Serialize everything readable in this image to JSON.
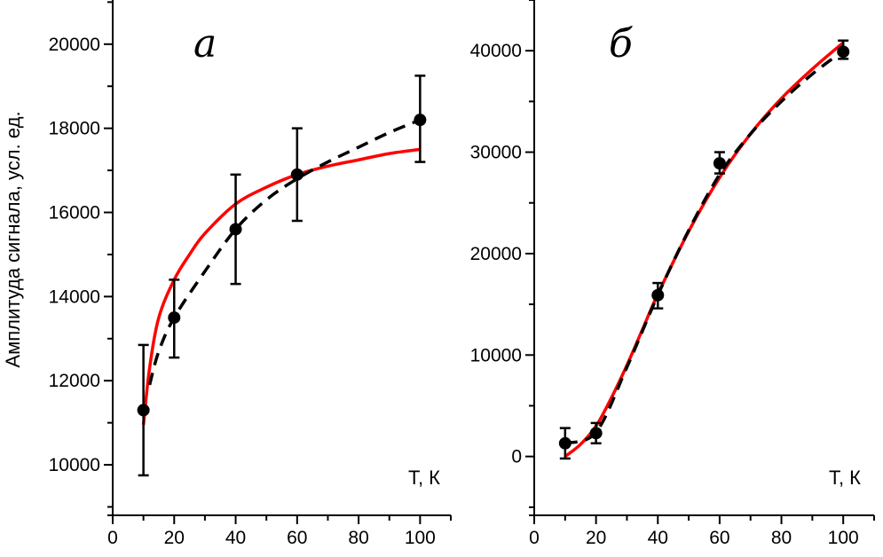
{
  "chart_data": [
    {
      "type": "scatter",
      "panel_label": "а",
      "ylabel": "Амплитуда сигнала, усл. ед.",
      "xlabel": "Т, К",
      "xlim": [
        0,
        110
      ],
      "ylim": [
        8800,
        21050
      ],
      "xticks": [
        0,
        20,
        40,
        60,
        80,
        100
      ],
      "yticks": [
        10000,
        12000,
        14000,
        16000,
        18000,
        20000
      ],
      "grid": false,
      "points": {
        "x": [
          10,
          20,
          40,
          60,
          100
        ],
        "y": [
          11300,
          13500,
          15600,
          16900,
          18200
        ],
        "err_low": [
          9750,
          12550,
          14300,
          15800,
          17200
        ],
        "err_high": [
          12850,
          14400,
          16900,
          18000,
          19250
        ]
      },
      "curves": [
        {
          "style": "solid",
          "color": "#ff0000",
          "x": [
            10,
            12,
            15,
            20,
            25,
            30,
            40,
            50,
            60,
            70,
            80,
            90,
            100
          ],
          "y": [
            10950,
            12300,
            13500,
            14400,
            15000,
            15500,
            16200,
            16600,
            16900,
            17100,
            17250,
            17400,
            17500
          ]
        },
        {
          "style": "dashed",
          "color": "#000000",
          "x": [
            12,
            15,
            20,
            30,
            40,
            50,
            60,
            70,
            80,
            90,
            100
          ],
          "y": [
            11900,
            12700,
            13500,
            14600,
            15600,
            16300,
            16800,
            17200,
            17550,
            17900,
            18200
          ]
        }
      ]
    },
    {
      "type": "scatter",
      "panel_label": "б",
      "xlabel": "Т, К",
      "xlim": [
        0,
        110
      ],
      "ylim": [
        -5800,
        45000
      ],
      "xticks": [
        0,
        20,
        40,
        60,
        80,
        100
      ],
      "yticks": [
        0,
        10000,
        20000,
        30000,
        40000
      ],
      "grid": false,
      "points": {
        "x": [
          10,
          20,
          40,
          60,
          100
        ],
        "y": [
          1300,
          2300,
          15900,
          28900,
          39900
        ],
        "err_low": [
          -200,
          1300,
          14600,
          27900,
          39200
        ],
        "err_high": [
          2800,
          3300,
          17100,
          30000,
          41000
        ]
      },
      "curves": [
        {
          "style": "solid",
          "color": "#ff0000",
          "x": [
            10,
            15,
            20,
            25,
            30,
            35,
            40,
            50,
            60,
            70,
            80,
            90,
            100
          ],
          "y": [
            0,
            1200,
            3000,
            5800,
            9000,
            12500,
            16000,
            22200,
            27500,
            31800,
            35300,
            38200,
            40800
          ]
        },
        {
          "style": "dashed",
          "color": "#000000",
          "x": [
            10,
            20,
            30,
            40,
            50,
            60,
            70,
            80,
            90,
            100
          ],
          "y": [
            1300,
            2400,
            8800,
            15900,
            22300,
            27800,
            31800,
            35000,
            37700,
            40000
          ]
        }
      ]
    }
  ]
}
